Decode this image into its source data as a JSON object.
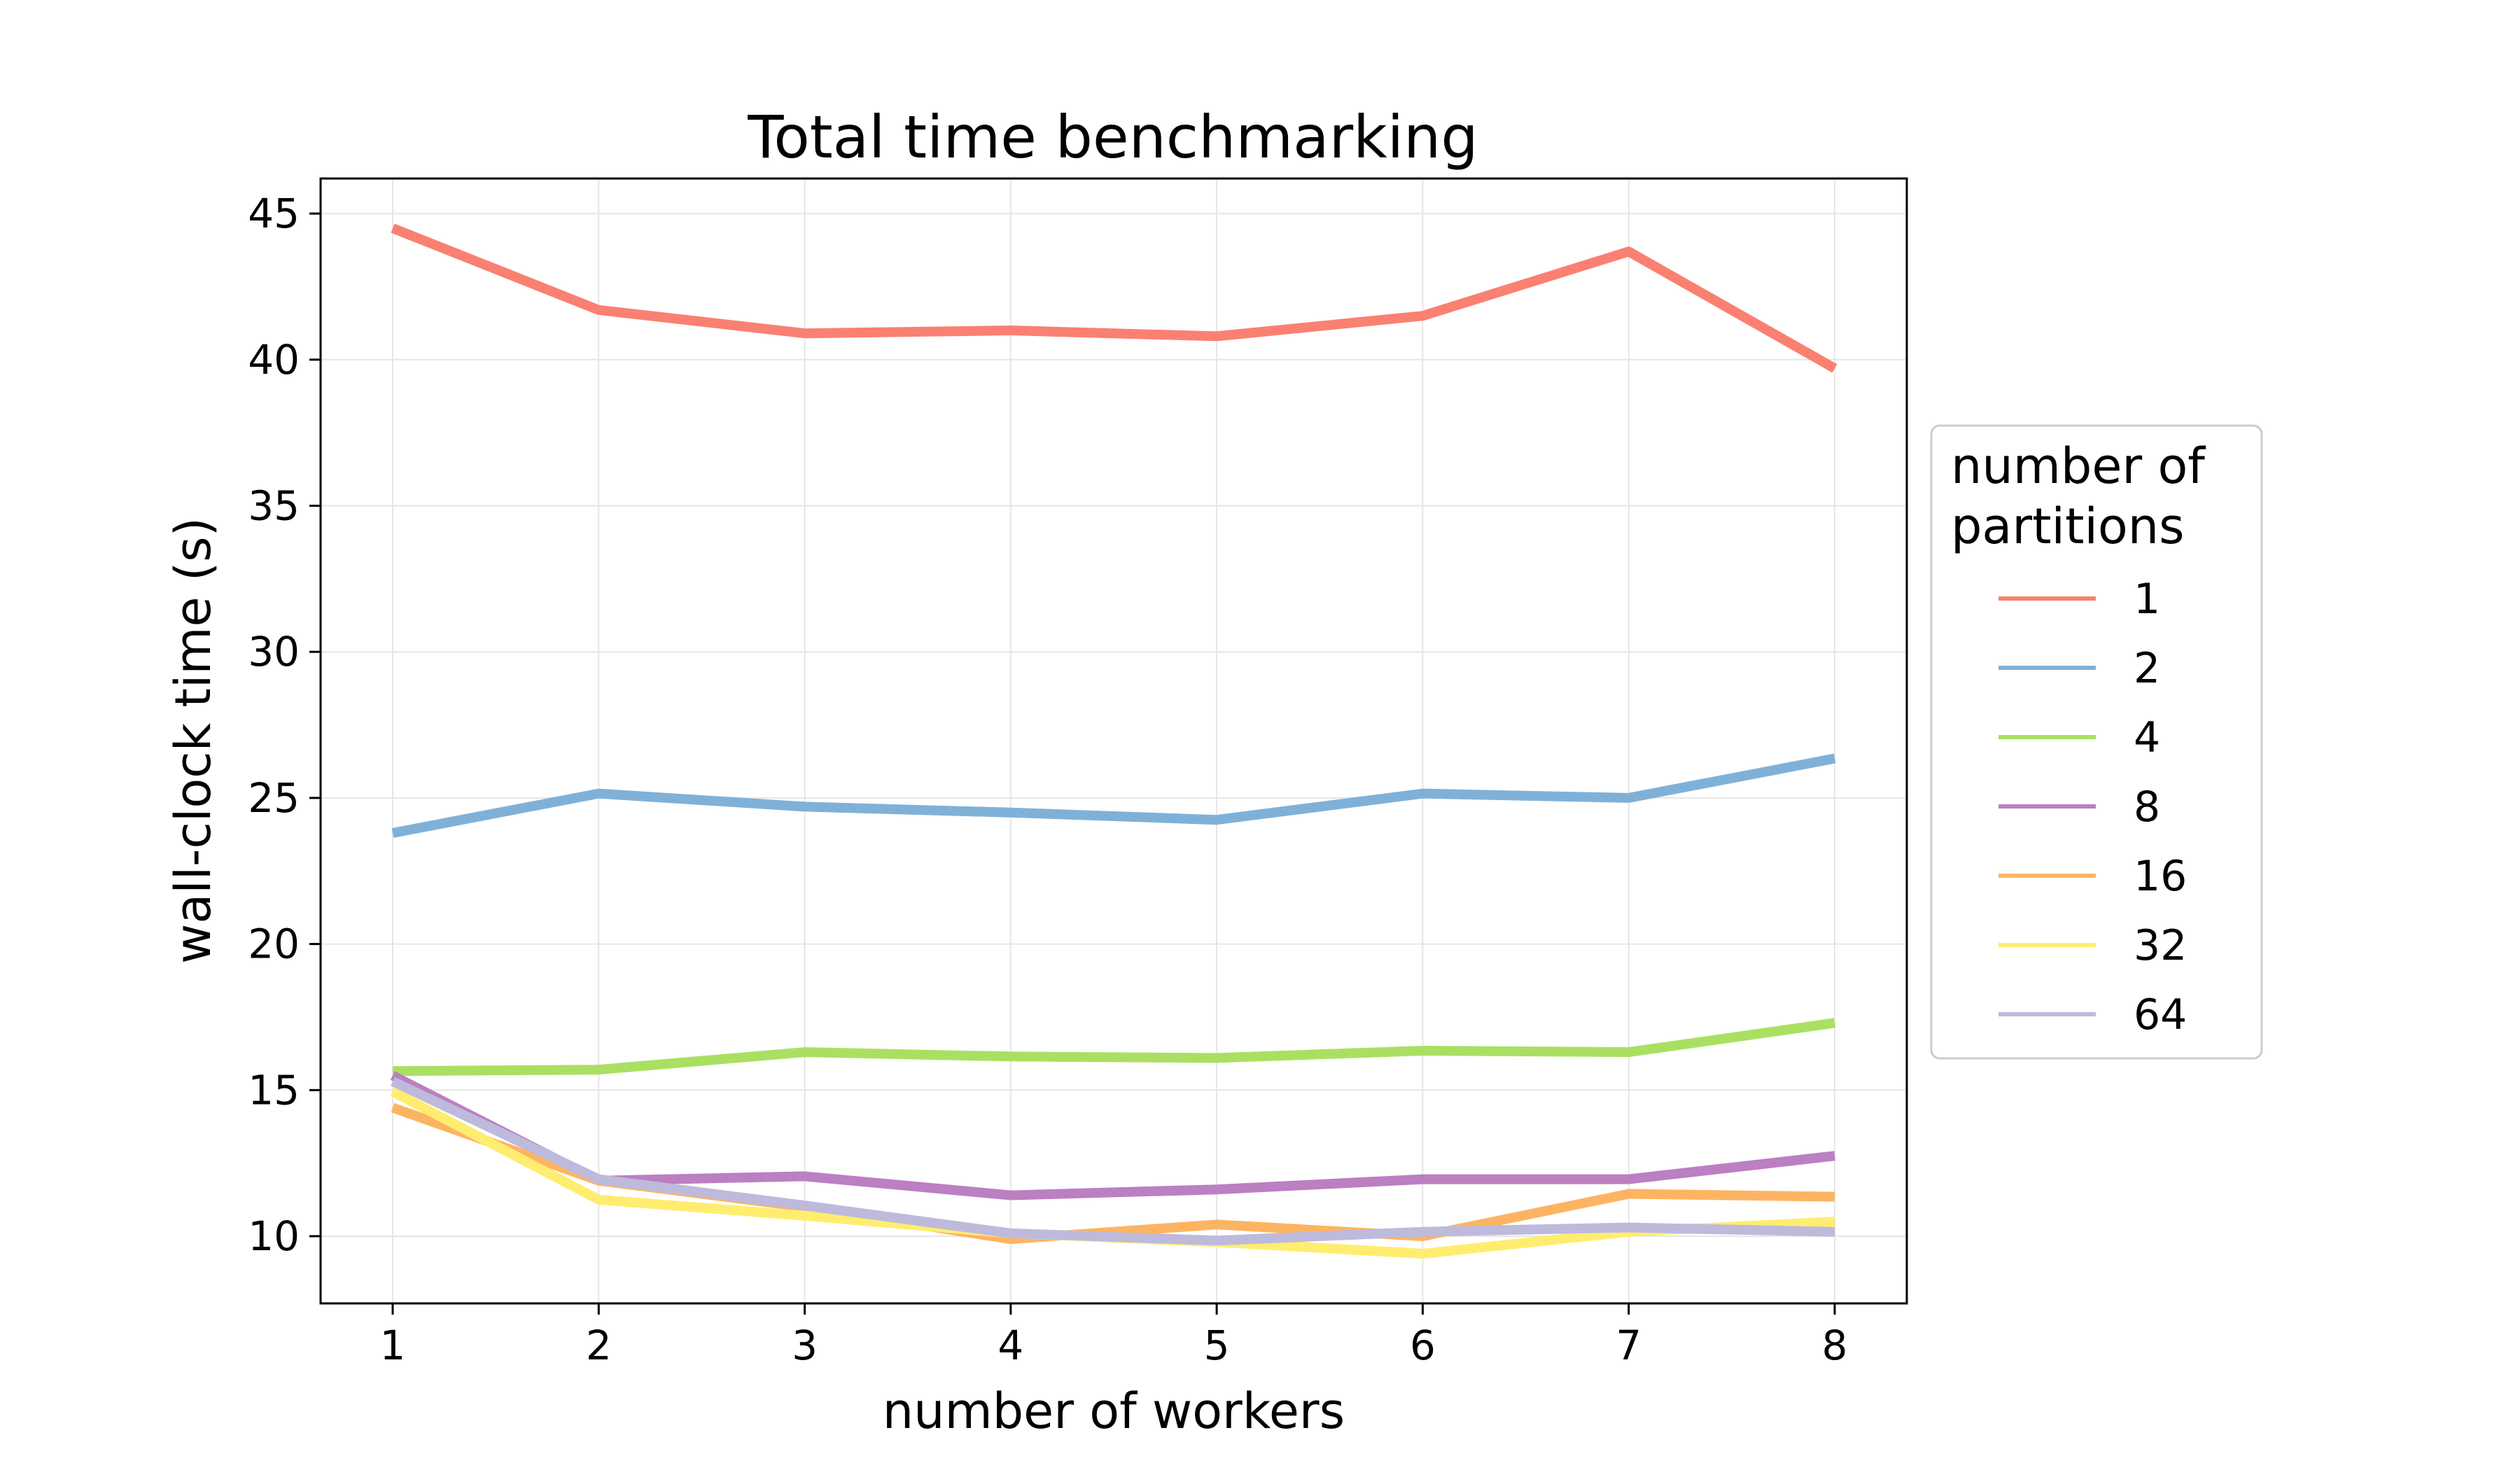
{
  "chart_data": {
    "type": "line",
    "title": "Total time benchmarking",
    "xlabel": "number of workers",
    "ylabel": "wall-clock time (s)",
    "x": [
      1,
      2,
      3,
      4,
      5,
      6,
      7,
      8
    ],
    "xlim": [
      0.65,
      8.35
    ],
    "ylim": [
      7.7,
      46.2
    ],
    "xticks": [
      1,
      2,
      3,
      4,
      5,
      6,
      7,
      8
    ],
    "yticks": [
      10,
      15,
      20,
      25,
      30,
      35,
      40,
      45
    ],
    "grid": true,
    "legend": {
      "title": "number of partitions",
      "placement": "outside-right"
    },
    "series": [
      {
        "name": "1",
        "color": "#fa8072",
        "values": [
          44.5,
          41.7,
          40.9,
          41.0,
          40.8,
          41.5,
          43.7,
          39.7
        ]
      },
      {
        "name": "2",
        "color": "#7fb1d8",
        "values": [
          23.8,
          25.15,
          24.7,
          24.5,
          24.25,
          25.15,
          25.0,
          26.35
        ]
      },
      {
        "name": "4",
        "color": "#a9e062",
        "values": [
          15.65,
          15.7,
          16.3,
          16.15,
          16.1,
          16.35,
          16.3,
          17.3
        ]
      },
      {
        "name": "8",
        "color": "#bb7fc2",
        "values": [
          15.5,
          11.9,
          12.05,
          11.4,
          11.6,
          11.95,
          11.95,
          12.75
        ]
      },
      {
        "name": "16",
        "color": "#fdb462",
        "values": [
          14.4,
          11.9,
          11.0,
          9.9,
          10.4,
          10.0,
          11.45,
          11.35
        ]
      },
      {
        "name": "32",
        "color": "#ffed6f",
        "values": [
          14.95,
          11.25,
          10.7,
          10.1,
          9.8,
          9.4,
          10.15,
          10.5
        ]
      },
      {
        "name": "64",
        "color": "#bebadb",
        "values": [
          15.3,
          11.95,
          11.05,
          10.1,
          9.85,
          10.15,
          10.3,
          10.15
        ]
      }
    ]
  }
}
